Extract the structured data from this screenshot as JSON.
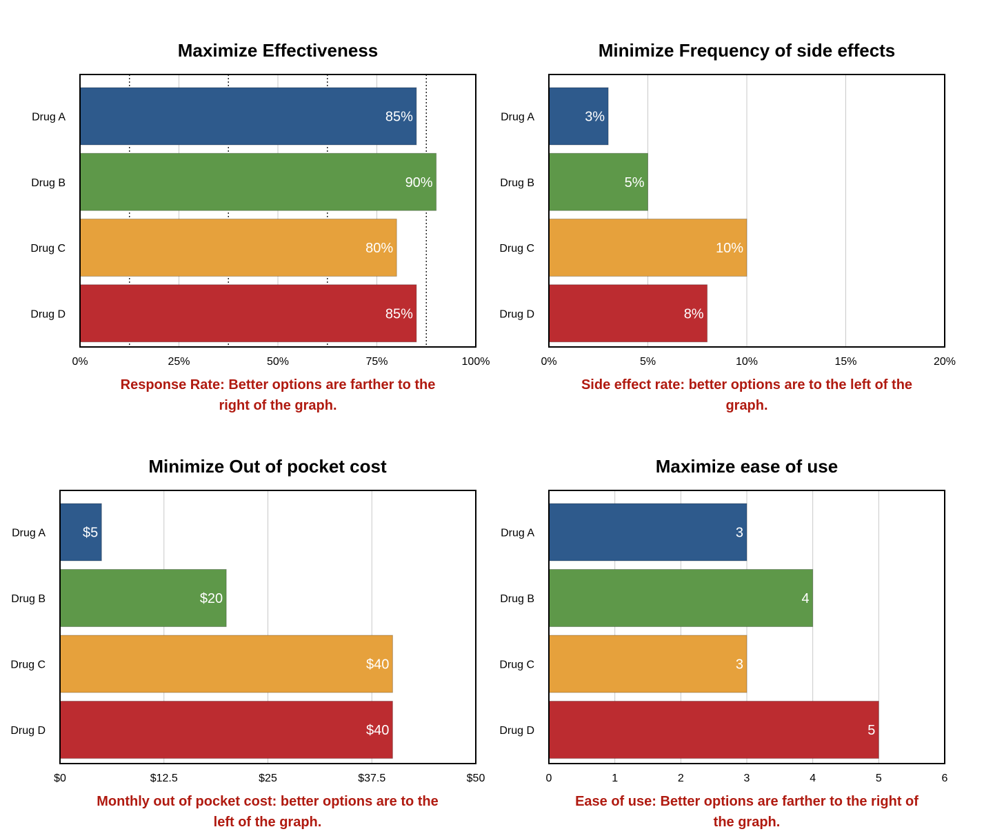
{
  "chart_data": [
    {
      "type": "bar",
      "orientation": "horizontal",
      "title": "Maximize Effectiveness",
      "categories": [
        "Drug A",
        "Drug B",
        "Drug C",
        "Drug D"
      ],
      "values": [
        85,
        90,
        80,
        85
      ],
      "value_labels": [
        "85%",
        "90%",
        "80%",
        "85%"
      ],
      "xlim": [
        0,
        100
      ],
      "xticks": [
        0,
        25,
        50,
        75,
        100
      ],
      "xtick_labels": [
        "0%",
        "25%",
        "50%",
        "75%",
        "100%"
      ],
      "minor_dotted_grid": [
        12.5,
        37.5,
        62.5,
        87.5
      ],
      "note": [
        "Response Rate: Better options are farther to the",
        "right of the graph."
      ]
    },
    {
      "type": "bar",
      "orientation": "horizontal",
      "title": "Minimize Frequency of side effects",
      "categories": [
        "Drug A",
        "Drug B",
        "Drug C",
        "Drug D"
      ],
      "values": [
        3,
        5,
        10,
        8
      ],
      "value_labels": [
        "3%",
        "5%",
        "10%",
        "8%"
      ],
      "xlim": [
        0,
        20
      ],
      "xticks": [
        0,
        5,
        10,
        15,
        20
      ],
      "xtick_labels": [
        "0%",
        "5%",
        "10%",
        "15%",
        "20%"
      ],
      "note": [
        "Side effect rate: better options are to the left of the",
        "graph."
      ]
    },
    {
      "type": "bar",
      "orientation": "horizontal",
      "title": "Minimize Out of pocket cost",
      "categories": [
        "Drug A",
        "Drug B",
        "Drug C",
        "Drug D"
      ],
      "values": [
        5,
        20,
        40,
        40
      ],
      "value_labels": [
        "$5",
        "$20",
        "$40",
        "$40"
      ],
      "xlim": [
        0,
        50
      ],
      "xticks": [
        0,
        12.5,
        25,
        37.5,
        50
      ],
      "xtick_labels": [
        "$0",
        "$12.5",
        "$25",
        "$37.5",
        "$50"
      ],
      "note": [
        "Monthly out of pocket cost: better options are to the",
        "left of the graph."
      ]
    },
    {
      "type": "bar",
      "orientation": "horizontal",
      "title": "Maximize ease of use",
      "categories": [
        "Drug A",
        "Drug B",
        "Drug C",
        "Drug D"
      ],
      "values": [
        3,
        4,
        3,
        5
      ],
      "value_labels": [
        "3",
        "4",
        "3",
        "5"
      ],
      "xlim": [
        0,
        6
      ],
      "xticks": [
        0,
        1,
        2,
        3,
        4,
        5,
        6
      ],
      "xtick_labels": [
        "0",
        "1",
        "2",
        "3",
        "4",
        "5",
        "6"
      ],
      "note": [
        "Ease of use: Better options are farther to the right of",
        "the graph."
      ]
    }
  ],
  "colors": {
    "Drug A": "#2e5a8c",
    "Drug B": "#5e9849",
    "Drug C": "#e6a13c",
    "Drug D": "#bc2c30",
    "grid": "#c8c8c8",
    "note": "#b01a10"
  }
}
